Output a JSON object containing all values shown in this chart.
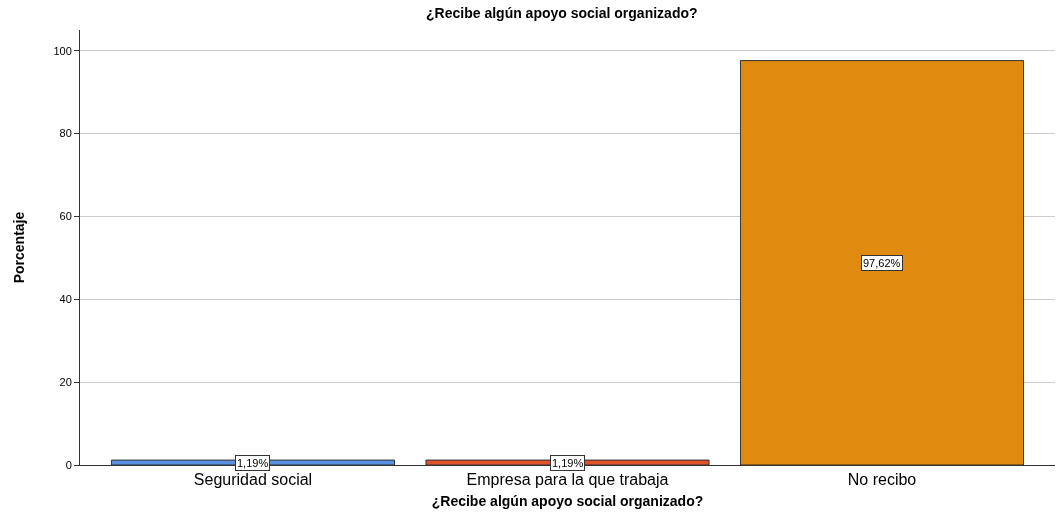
{
  "chart_data": {
    "type": "bar",
    "title": "¿Recibe algún apoyo social organizado?",
    "xlabel": "¿Recibe algún apoyo social organizado?",
    "ylabel": "Porcentaje",
    "categories": [
      "Seguridad social",
      "Empresa para la que trabaja",
      "No recibo"
    ],
    "values": [
      1.19,
      1.19,
      97.62
    ],
    "colors": [
      "#5b8fe0",
      "#e0542a",
      "#e08a10"
    ],
    "value_labels": [
      "1,19%",
      "1,19%",
      "97,62%"
    ],
    "ylim": [
      0,
      105
    ],
    "yticks": [
      0,
      20,
      40,
      60,
      80,
      100
    ],
    "grid": "y",
    "legend": false
  }
}
